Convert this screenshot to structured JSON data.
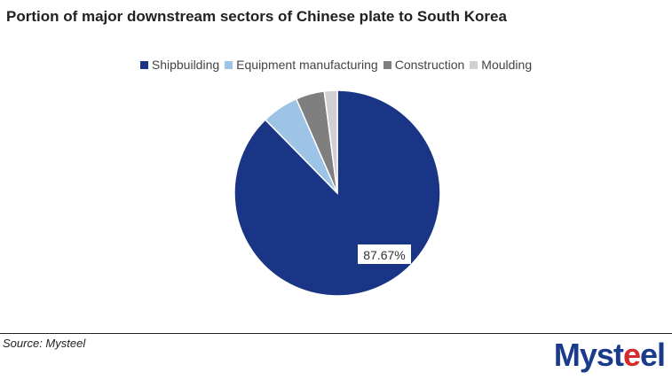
{
  "chart_data": {
    "type": "pie",
    "title": "Portion of major downstream sectors of Chinese plate to South Korea",
    "slices": [
      {
        "name": "Shipbuilding",
        "value": 87.67,
        "color": "#1a3585",
        "label": "87.67%"
      },
      {
        "name": "Equipment manufacturing",
        "value": 5.8,
        "color": "#9dc3e6",
        "label": null
      },
      {
        "name": "Construction",
        "value": 4.5,
        "color": "#7f7f7f",
        "label": null
      },
      {
        "name": "Moulding",
        "value": 2.03,
        "color": "#d0d0d0",
        "label": null
      }
    ],
    "start_angle": "top",
    "direction": "clockwise",
    "legend_position": "top"
  },
  "source": "Source: Mysteel",
  "logo": {
    "part1": "Myst",
    "part2": "e",
    "part3": "el"
  }
}
